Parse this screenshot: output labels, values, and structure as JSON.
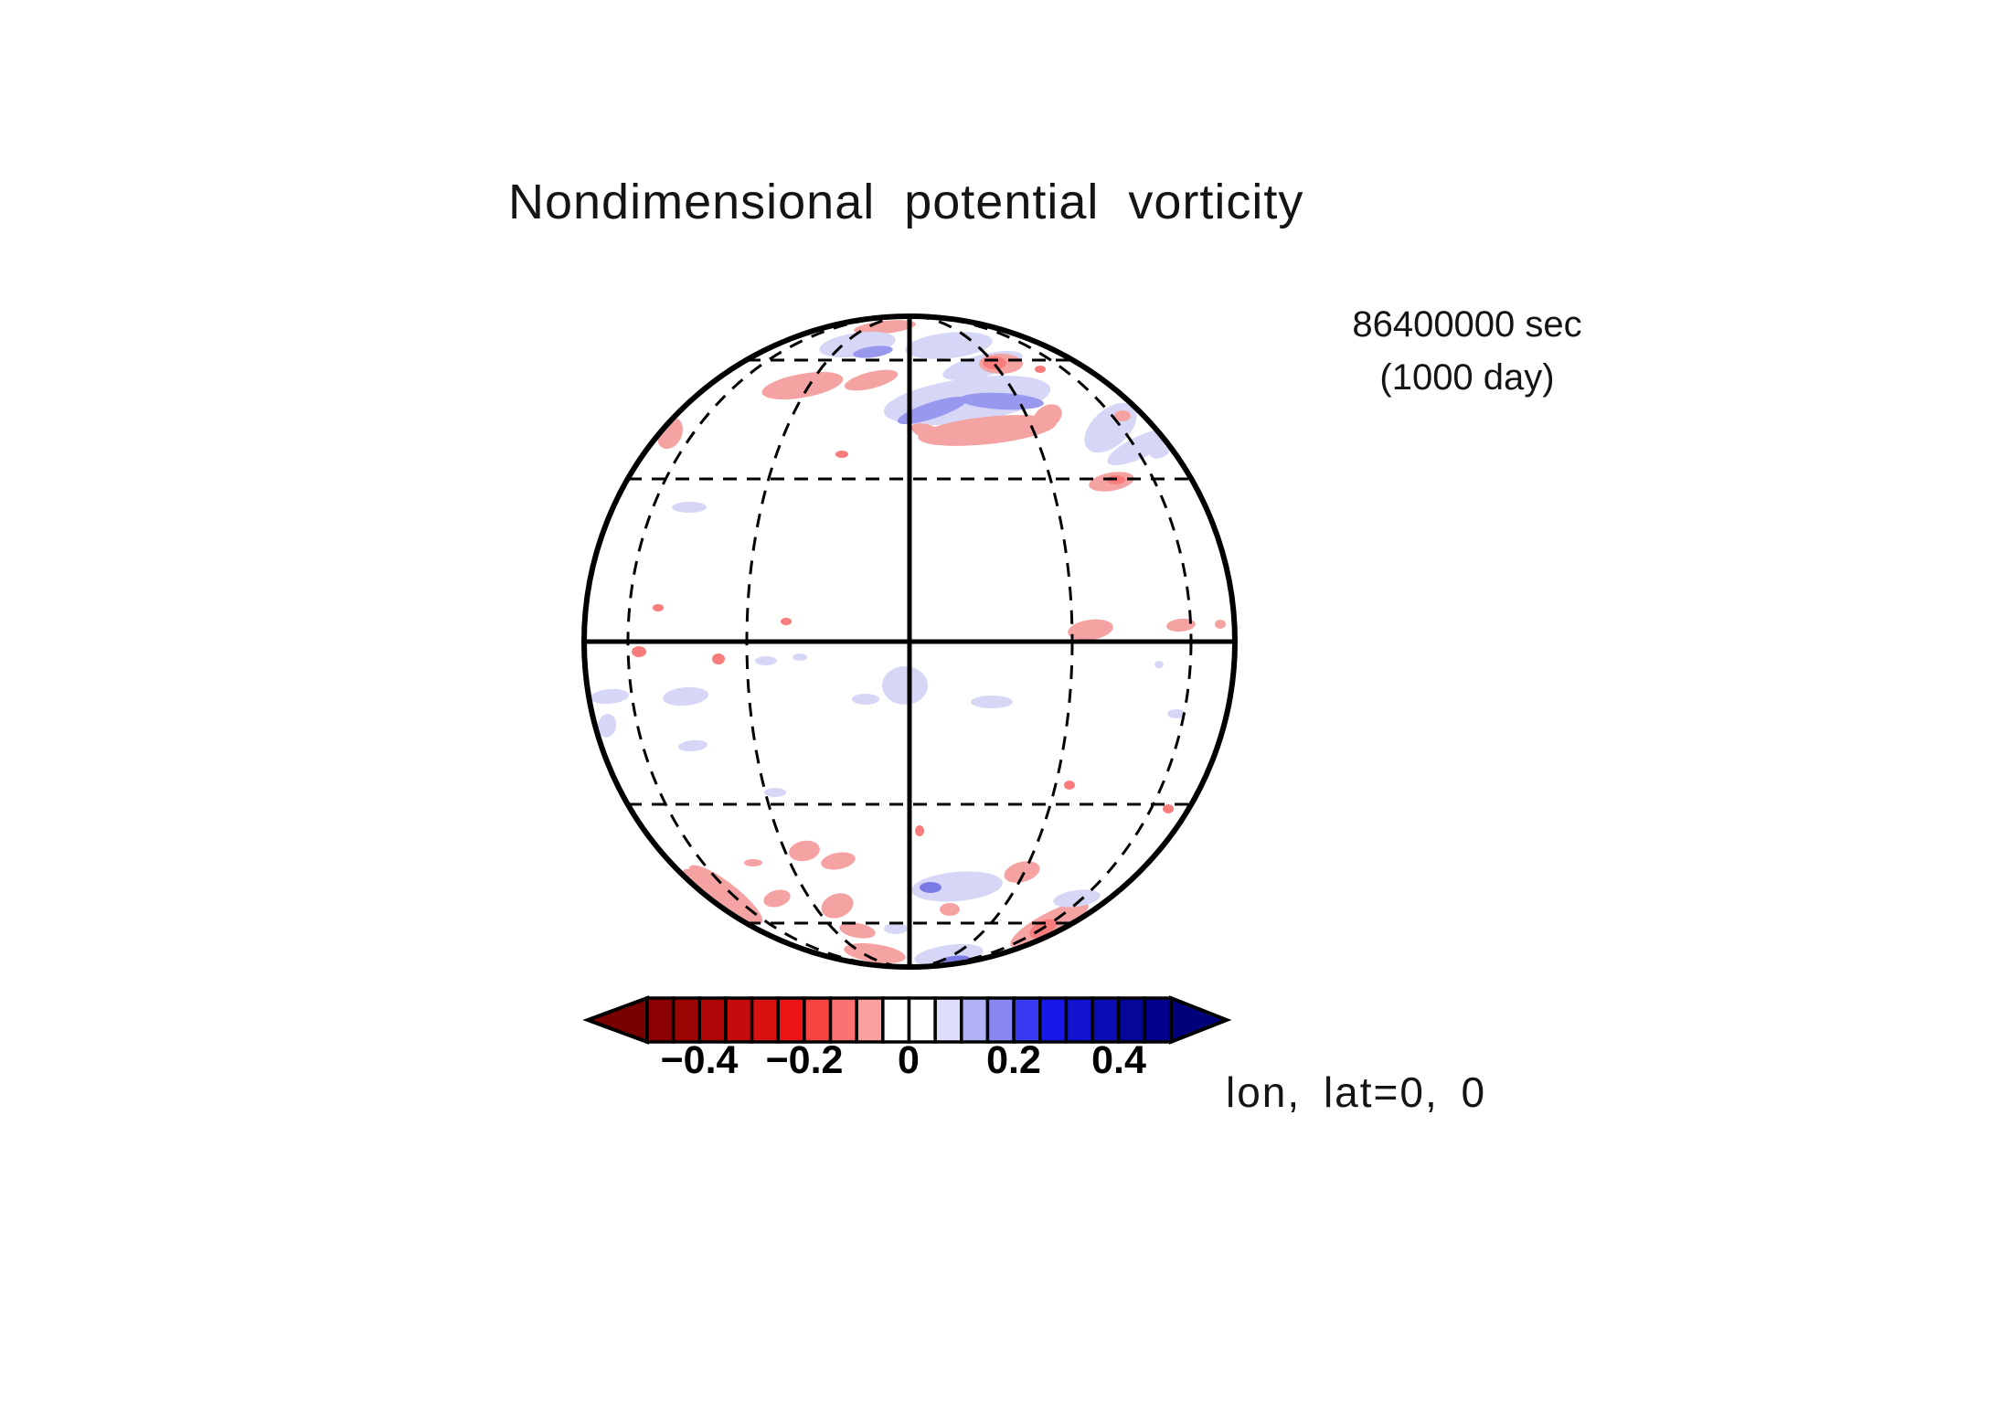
{
  "title": "Nondimensional potential vorticity",
  "annotations": {
    "time_sec": "86400000 sec",
    "time_day": "(1000 day)",
    "projection_label": "lon, lat=0, 0"
  },
  "colorbar": {
    "ticks": [
      "−0.4",
      "−0.2",
      "0",
      "0.2",
      "0.4"
    ],
    "tick_values": [
      -0.4,
      -0.2,
      0,
      0.2,
      0.4
    ],
    "left_arrow_color": "#7A0000",
    "right_arrow_color": "#00007A",
    "cell_colors": [
      "#8B0000",
      "#9C0404",
      "#B00808",
      "#C40C0C",
      "#D81010",
      "#EC1414",
      "#F94444",
      "#FB7272",
      "#FDA0A0",
      "#FFFFFF",
      "#FFFFFF",
      "#DEDEFB",
      "#B2B2F7",
      "#8888F0",
      "#3A3AF2",
      "#1818E8",
      "#1212D0",
      "#0C0CB4",
      "#060698",
      "#00008B"
    ]
  },
  "chart_data": {
    "type": "heatmap",
    "title": "Nondimensional potential vorticity",
    "time_label": "86400000 sec (1000 day)",
    "projection": "orthographic globe centered at lon=0, lat=0",
    "view_center_label": "lon, lat=0, 0",
    "graticule_spacing_deg": 30,
    "solid_lines": [
      "equator",
      "central meridian lon=0",
      "limb"
    ],
    "dashed_lines": [
      "parallels ±30° ±60°",
      "meridians ±30° ±60°"
    ],
    "value_range": [
      -0.5,
      0.5
    ],
    "contour_interval": 0.05,
    "colorbar_ticks": [
      -0.4,
      -0.2,
      0,
      0.2,
      0.4
    ],
    "palette": {
      "p": "#F5A2A2",
      "r": "#F87C7C",
      "l": "#D6D6F7",
      "b": "#9898EE",
      "d": "#7A7AE4"
    },
    "features_format": "[color_key, cx_px, cy_px, rx_px, ry_px, rotation_deg] — weak PV anomalies (pink/red negative ~ -0.05..-0.2, lavender/blue positive ~ +0.05..+0.2) on globe of center (995,702) radius 356",
    "features": [
      [
        "p",
        968,
        358,
        34,
        7,
        -6
      ],
      [
        "l",
        938,
        377,
        42,
        13,
        -8
      ],
      [
        "b",
        955,
        385,
        22,
        6,
        -8
      ],
      [
        "l",
        1038,
        378,
        48,
        14,
        -6
      ],
      [
        "l",
        1075,
        400,
        45,
        12,
        -14
      ],
      [
        "r",
        1138,
        404,
        6,
        4,
        0
      ],
      [
        "p",
        1095,
        398,
        24,
        11,
        0
      ],
      [
        "r",
        1088,
        397,
        13,
        7,
        0
      ],
      [
        "p",
        878,
        422,
        45,
        13,
        -10
      ],
      [
        "p",
        953,
        416,
        30,
        9,
        -14
      ],
      [
        "p",
        733,
        474,
        13,
        18,
        25
      ],
      [
        "l",
        1058,
        438,
        92,
        24,
        -8
      ],
      [
        "l",
        1215,
        468,
        34,
        20,
        -42
      ],
      [
        "l",
        1235,
        395,
        28,
        11,
        -35
      ],
      [
        "b",
        1020,
        449,
        40,
        9,
        -18
      ],
      [
        "b",
        1096,
        439,
        46,
        9,
        3
      ],
      [
        "p",
        1080,
        471,
        76,
        15,
        -6
      ],
      [
        "p",
        1146,
        456,
        17,
        12,
        -32
      ],
      [
        "p",
        1016,
        473,
        20,
        8,
        18
      ],
      [
        "l",
        1248,
        489,
        40,
        12,
        -25
      ],
      [
        "p",
        1228,
        455,
        9,
        6,
        0
      ],
      [
        "l",
        754,
        555,
        19,
        6,
        0
      ],
      [
        "r",
        921,
        497,
        7,
        4,
        0
      ],
      [
        "p",
        1216,
        527,
        25,
        10,
        -10
      ],
      [
        "r",
        1221,
        525,
        10,
        5,
        0
      ],
      [
        "l",
        1269,
        495,
        11,
        6,
        -20
      ],
      [
        "r",
        720,
        665,
        6,
        4,
        0
      ],
      [
        "r",
        860,
        680,
        6,
        4,
        0
      ],
      [
        "p",
        1193,
        689,
        25,
        11,
        -8
      ],
      [
        "p",
        1292,
        684,
        16,
        7,
        -5
      ],
      [
        "p",
        1335,
        683,
        6,
        5,
        0
      ],
      [
        "r",
        699,
        713,
        8,
        6,
        0
      ],
      [
        "r",
        786,
        721,
        7,
        6,
        0
      ],
      [
        "l",
        838,
        723,
        12,
        5,
        0
      ],
      [
        "l",
        875,
        719,
        8,
        4,
        0
      ],
      [
        "l",
        990,
        750,
        25,
        21,
        0
      ],
      [
        "l",
        947,
        765,
        15,
        6,
        0
      ],
      [
        "l",
        1085,
        768,
        23,
        7,
        0
      ],
      [
        "l",
        667,
        762,
        21,
        8,
        -5
      ],
      [
        "l",
        750,
        762,
        25,
        10,
        -5
      ],
      [
        "l",
        664,
        794,
        10,
        13,
        10
      ],
      [
        "l",
        758,
        816,
        16,
        6,
        -5
      ],
      [
        "l",
        1268,
        727,
        5,
        4,
        0
      ],
      [
        "l",
        1287,
        781,
        10,
        5,
        0
      ],
      [
        "l",
        848,
        867,
        12,
        5,
        0
      ],
      [
        "r",
        1170,
        859,
        6,
        5,
        0
      ],
      [
        "r",
        1278,
        885,
        6,
        5,
        0
      ],
      [
        "r",
        1006,
        909,
        5,
        6,
        0
      ],
      [
        "p",
        880,
        931,
        17,
        11,
        -10
      ],
      [
        "p",
        917,
        942,
        19,
        9,
        -10
      ],
      [
        "p",
        824,
        944,
        10,
        4,
        0
      ],
      [
        "p",
        916,
        991,
        18,
        13,
        -20
      ],
      [
        "p",
        850,
        983,
        15,
        9,
        -15
      ],
      [
        "p",
        794,
        979,
        50,
        13,
        38
      ],
      [
        "p",
        760,
        962,
        16,
        8,
        35
      ],
      [
        "p",
        938,
        1018,
        20,
        8,
        10
      ],
      [
        "l",
        1047,
        970,
        50,
        16,
        -5
      ],
      [
        "d",
        1018,
        971,
        12,
        6,
        0
      ],
      [
        "p",
        1118,
        954,
        20,
        11,
        -15
      ],
      [
        "p",
        1039,
        995,
        11,
        7,
        0
      ],
      [
        "p",
        1148,
        1012,
        48,
        13,
        -28
      ],
      [
        "r",
        1141,
        1016,
        16,
        8,
        -28
      ],
      [
        "l",
        1178,
        983,
        26,
        9,
        -8
      ],
      [
        "p",
        957,
        1043,
        34,
        10,
        8
      ],
      [
        "l",
        1038,
        1045,
        38,
        11,
        -8
      ],
      [
        "d",
        1043,
        1051,
        18,
        5,
        -8
      ],
      [
        "l",
        980,
        1016,
        13,
        6,
        0
      ]
    ]
  }
}
